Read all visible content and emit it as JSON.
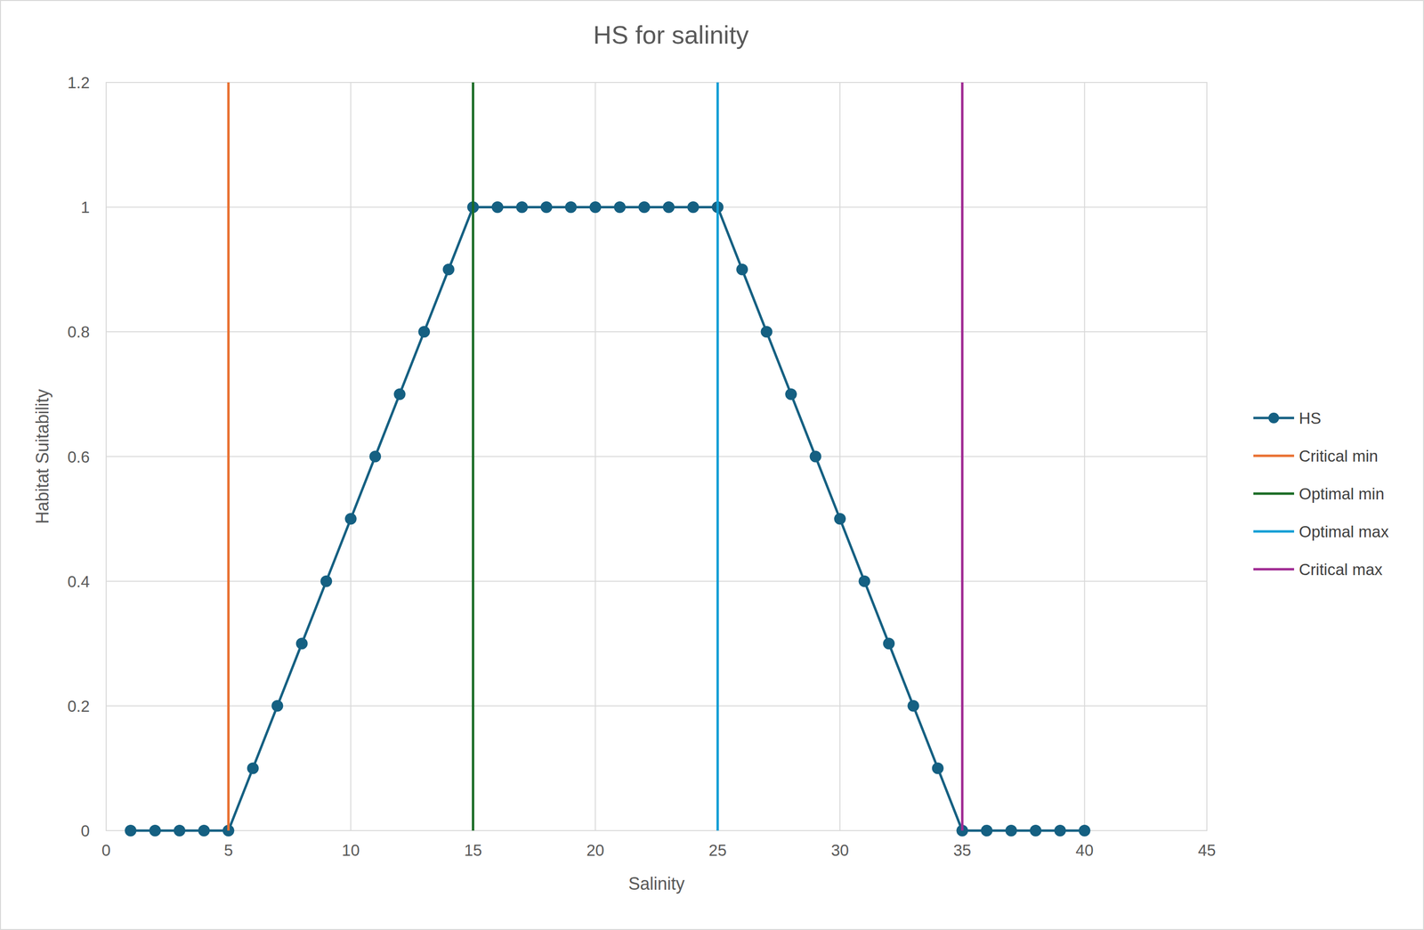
{
  "chart_data": {
    "type": "scatter",
    "title": "HS for salinity",
    "x_label": "Salinity",
    "y_label": "Habitat Suitability",
    "xlim": [
      0,
      45
    ],
    "xticks": [
      0,
      5,
      10,
      15,
      20,
      25,
      30,
      35,
      40,
      45
    ],
    "ylim": [
      0,
      1.2
    ],
    "yticks": [
      0,
      0.2,
      0.4,
      0.6,
      0.8,
      1,
      1.2
    ],
    "grid": true,
    "legend": "right",
    "series": [
      {
        "name": "HS",
        "color": "#156082",
        "marker": "circle",
        "line_style": "solid",
        "x": [
          1,
          2,
          3,
          4,
          5,
          6,
          7,
          8,
          9,
          10,
          11,
          12,
          13,
          14,
          15,
          16,
          17,
          18,
          19,
          20,
          21,
          22,
          23,
          24,
          25,
          26,
          27,
          28,
          29,
          30,
          31,
          32,
          33,
          34,
          35,
          36,
          37,
          38,
          39,
          40
        ],
        "values": [
          0,
          0,
          0,
          0,
          0,
          0.1,
          0.2,
          0.3,
          0.4,
          0.5,
          0.6,
          0.7,
          0.8,
          0.9,
          1,
          1,
          1,
          1,
          1,
          1,
          1,
          1,
          1,
          1,
          1,
          0.9,
          0.8,
          0.7,
          0.6,
          0.5,
          0.4,
          0.3,
          0.2,
          0.1,
          0,
          0,
          0,
          0,
          0,
          0
        ]
      },
      {
        "name": "Critical min",
        "color": "#E97132",
        "marker": "none",
        "line_style": "solid",
        "x": [
          5,
          5
        ],
        "values": [
          0,
          1.2
        ]
      },
      {
        "name": "Optimal min",
        "color": "#196B24",
        "marker": "none",
        "line_style": "solid",
        "x": [
          15,
          15
        ],
        "values": [
          0,
          1.2
        ]
      },
      {
        "name": "Optimal max",
        "color": "#0F9ED5",
        "marker": "none",
        "line_style": "solid",
        "x": [
          25,
          25
        ],
        "values": [
          0,
          1.2
        ]
      },
      {
        "name": "Critical max",
        "color": "#A02B93",
        "marker": "none",
        "line_style": "solid",
        "x": [
          35,
          35
        ],
        "values": [
          0,
          1.2
        ]
      }
    ]
  }
}
